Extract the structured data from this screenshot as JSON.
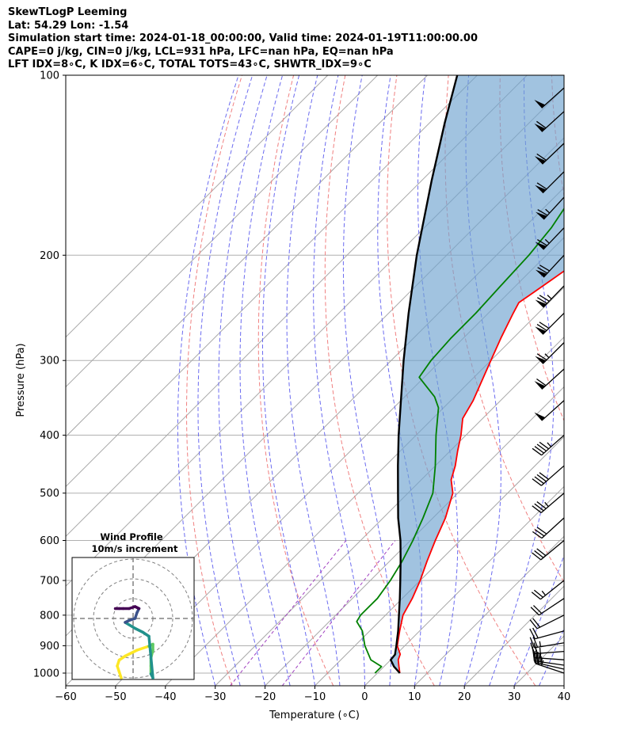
{
  "header": {
    "title": "SkewTLogP Leeming",
    "location": "Lat: 54.29   Lon: -1.54",
    "times": "Simulation start time: 2024-01-18_00:00:00, Valid time: 2024-01-19T11:00:00.00",
    "indices": "CAPE=0 j/kg, CIN=0 j/kg, LCL=931 hPa, LFC=nan hPa, EQ=nan hPa",
    "indices2": "LFT IDX=8∘C, K IDX=6∘C, TOTAL TOTS=43∘C, SHWTR_IDX=9∘C"
  },
  "chart_data": {
    "type": "line",
    "skew": true,
    "xlabel": "Temperature (∘C)",
    "ylabel": "Pressure (hPa)",
    "xlim": [
      -60,
      40
    ],
    "ylim": [
      1050,
      100
    ],
    "y_scale": "log",
    "grid": true,
    "x_ticks": [
      "−60",
      "−50",
      "−40",
      "−30",
      "−20",
      "−10",
      "0",
      "10",
      "20",
      "30",
      "40"
    ],
    "x_tick_values": [
      -60,
      -50,
      -40,
      -30,
      -20,
      -10,
      0,
      10,
      20,
      30,
      40
    ],
    "y_ticks": [
      "1000",
      "900",
      "800",
      "700",
      "600",
      "500",
      "400",
      "300",
      "200",
      "100"
    ],
    "y_tick_values": [
      1000,
      900,
      800,
      700,
      600,
      500,
      400,
      300,
      200,
      100
    ],
    "series": [
      {
        "role": "temperature",
        "color": "#ff0000",
        "points": [
          [
            1000,
            4.5
          ],
          [
            975,
            3
          ],
          [
            950,
            1.5
          ],
          [
            930,
            0.8
          ],
          [
            900,
            -1.5
          ],
          [
            850,
            -4
          ],
          [
            800,
            -6.5
          ],
          [
            750,
            -8
          ],
          [
            700,
            -10
          ],
          [
            650,
            -12.5
          ],
          [
            600,
            -15
          ],
          [
            550,
            -17.5
          ],
          [
            500,
            -21
          ],
          [
            475,
            -24
          ],
          [
            450,
            -26
          ],
          [
            425,
            -28.5
          ],
          [
            400,
            -31
          ],
          [
            375,
            -34
          ],
          [
            350,
            -35.5
          ],
          [
            300,
            -40
          ],
          [
            275,
            -42.5
          ],
          [
            250,
            -45
          ],
          [
            240,
            -46
          ],
          [
            230,
            -45
          ],
          [
            220,
            -44
          ],
          [
            210,
            -43
          ],
          [
            200,
            -42
          ],
          [
            175,
            -42
          ],
          [
            150,
            -43
          ],
          [
            125,
            -45
          ],
          [
            115,
            -46
          ],
          [
            105,
            -47
          ],
          [
            100,
            -48
          ]
        ]
      },
      {
        "role": "dewpoint",
        "color": "#008000",
        "points": [
          [
            1000,
            -0.5
          ],
          [
            975,
            -0.5
          ],
          [
            950,
            -4
          ],
          [
            900,
            -8
          ],
          [
            850,
            -11.5
          ],
          [
            820,
            -14.5
          ],
          [
            800,
            -15
          ],
          [
            775,
            -15
          ],
          [
            750,
            -15
          ],
          [
            700,
            -16
          ],
          [
            650,
            -17.5
          ],
          [
            600,
            -19.5
          ],
          [
            550,
            -22
          ],
          [
            500,
            -25
          ],
          [
            450,
            -30
          ],
          [
            400,
            -36
          ],
          [
            360,
            -41
          ],
          [
            345,
            -44
          ],
          [
            320,
            -51
          ],
          [
            300,
            -52
          ],
          [
            275,
            -52.5
          ],
          [
            250,
            -52.5
          ],
          [
            225,
            -53
          ],
          [
            200,
            -53.5
          ],
          [
            180,
            -54.5
          ],
          [
            165,
            -56
          ],
          [
            150,
            -58
          ],
          [
            140,
            -59
          ],
          [
            130,
            -58
          ],
          [
            120,
            -58
          ],
          [
            110,
            -57
          ],
          [
            100,
            -57
          ]
        ]
      },
      {
        "role": "parcel",
        "color": "#000000",
        "points": [
          [
            1000,
            4.5
          ],
          [
            975,
            2
          ],
          [
            950,
            0
          ],
          [
            931,
            -0.2
          ],
          [
            900,
            -1.7
          ],
          [
            850,
            -4.3
          ],
          [
            800,
            -7.3
          ],
          [
            750,
            -10.5
          ],
          [
            700,
            -14
          ],
          [
            650,
            -17.8
          ],
          [
            600,
            -22
          ],
          [
            550,
            -27
          ],
          [
            500,
            -32
          ],
          [
            450,
            -37.5
          ],
          [
            400,
            -43.5
          ],
          [
            350,
            -50
          ],
          [
            300,
            -57.5
          ],
          [
            250,
            -66
          ],
          [
            200,
            -76
          ],
          [
            150,
            -88
          ],
          [
            120,
            -97
          ],
          [
            100,
            -104
          ]
        ]
      }
    ],
    "wind_barbs": [
      {
        "p": 1000,
        "u": -12,
        "v": 4
      },
      {
        "p": 985,
        "u": -13,
        "v": 3
      },
      {
        "p": 970,
        "u": -14,
        "v": 2
      },
      {
        "p": 950,
        "u": -14,
        "v": 1
      },
      {
        "p": 920,
        "u": -13,
        "v": -1
      },
      {
        "p": 890,
        "u": -12,
        "v": -2
      },
      {
        "p": 850,
        "u": -11,
        "v": -3
      },
      {
        "p": 800,
        "u": -10,
        "v": -5
      },
      {
        "p": 750,
        "u": -9,
        "v": -6
      },
      {
        "p": 700,
        "u": -10,
        "v": -8
      },
      {
        "p": 600,
        "u": -12,
        "v": -10
      },
      {
        "p": 550,
        "u": -12,
        "v": -11
      },
      {
        "p": 500,
        "u": -14,
        "v": -12
      },
      {
        "p": 450,
        "u": -16,
        "v": -14
      },
      {
        "p": 400,
        "u": -18,
        "v": -16
      },
      {
        "p": 350,
        "u": -20,
        "v": -18
      },
      {
        "p": 310,
        "u": -22,
        "v": -20
      },
      {
        "p": 280,
        "u": -24,
        "v": -24
      },
      {
        "p": 250,
        "u": -26,
        "v": -26
      },
      {
        "p": 225,
        "u": -26,
        "v": -27
      },
      {
        "p": 200,
        "u": -25,
        "v": -27
      },
      {
        "p": 180,
        "u": -24,
        "v": -25
      },
      {
        "p": 160,
        "u": -22,
        "v": -24
      },
      {
        "p": 145,
        "u": -22,
        "v": -22
      },
      {
        "p": 130,
        "u": -22,
        "v": -21
      },
      {
        "p": 115,
        "u": -22,
        "v": -20
      },
      {
        "p": 105,
        "u": -20,
        "v": -18
      }
    ],
    "inset": {
      "title": "Wind Profile",
      "subtitle": "10m/s increment",
      "rings_ms": [
        10,
        20,
        30
      ],
      "hodograph_uv": [
        [
          -6,
          -30
        ],
        [
          -7,
          -27
        ],
        [
          -8,
          -24
        ],
        [
          -7,
          -21
        ],
        [
          -4,
          -19
        ],
        [
          2,
          -16
        ],
        [
          8,
          -14
        ],
        [
          10,
          -13
        ],
        [
          10,
          -16
        ],
        [
          9,
          -20
        ],
        [
          9,
          -24
        ],
        [
          9,
          -28
        ],
        [
          10,
          -30
        ],
        [
          8,
          -9
        ],
        [
          5,
          -7
        ],
        [
          1,
          -5
        ],
        [
          -4,
          -2
        ],
        [
          -2,
          -1
        ],
        [
          1,
          0
        ],
        [
          2,
          3
        ],
        [
          3,
          5
        ],
        [
          1,
          6
        ],
        [
          -2,
          5
        ],
        [
          -5,
          5
        ],
        [
          -7,
          5
        ],
        [
          -9,
          5
        ]
      ],
      "colormap": [
        "#440154",
        "#3b528b",
        "#21918c",
        "#5ec962",
        "#fde725"
      ]
    }
  }
}
